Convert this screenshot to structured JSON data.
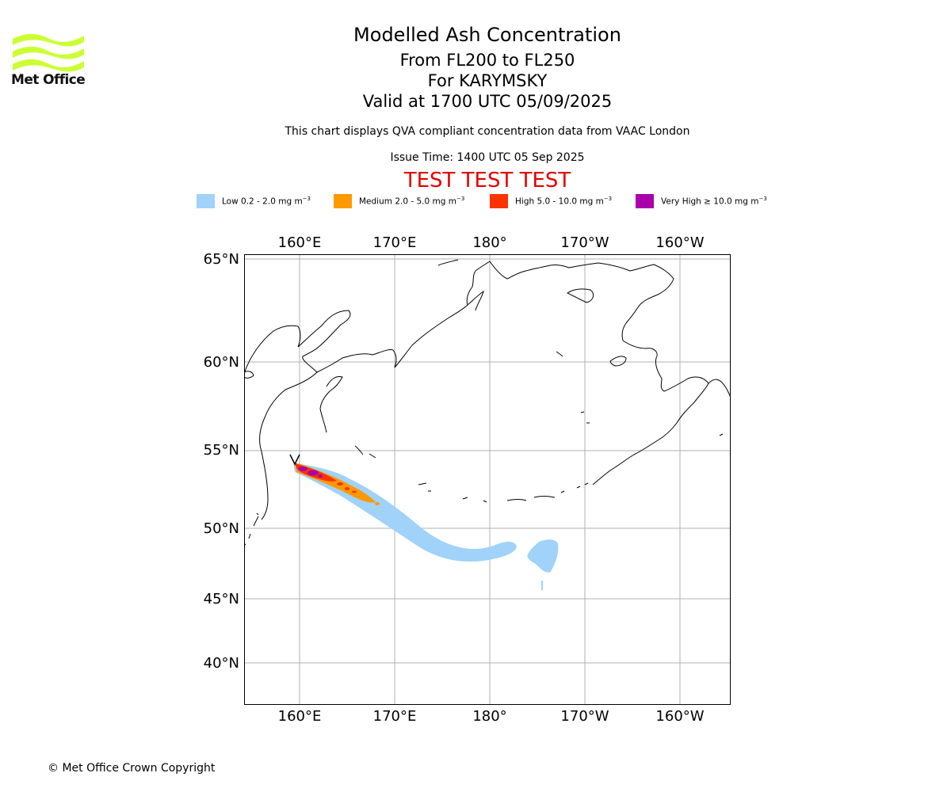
{
  "header": {
    "title": "Modelled Ash Concentration",
    "levels": "From FL200 to FL250",
    "volcano": "For KARYMSKY",
    "valid": "Valid at 1700 UTC 05/09/2025",
    "note": "This chart displays QVA compliant concentration data from VAAC London",
    "issue": "Issue Time: 1400 UTC 05 Sep 2025",
    "test_banner": "TEST TEST TEST"
  },
  "logo": {
    "text": "Met Office",
    "color": "#ccff33"
  },
  "legend": [
    {
      "label": "Low 0.2 - 2.0 mg m",
      "sup": "−3",
      "color": "#a0d2fa"
    },
    {
      "label": "Medium 2.0 - 5.0 mg m",
      "sup": "−3",
      "color": "#ff9900"
    },
    {
      "label": "High 5.0 - 10.0 mg m",
      "sup": "−3",
      "color": "#ff3300"
    },
    {
      "label": "Very High  ≥  10.0 mg m",
      "sup": "−3",
      "color": "#aa00aa"
    }
  ],
  "map": {
    "lon_ticks": [
      "160°E",
      "170°E",
      "180°",
      "170°W",
      "160°W"
    ],
    "lat_ticks": [
      "65°N",
      "60°N",
      "55°N",
      "50°N",
      "45°N",
      "40°N"
    ],
    "grid": true
  },
  "footer": {
    "copyright": "© Met Office Crown Copyright"
  }
}
